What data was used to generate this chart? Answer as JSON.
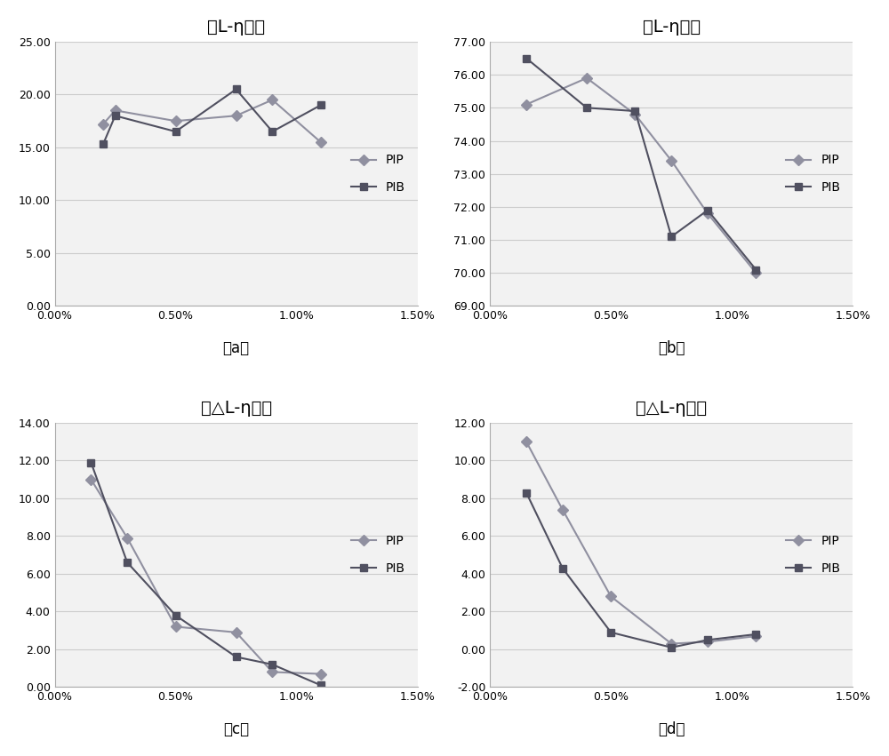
{
  "subplots": [
    {
      "title": "黑L-η曲线",
      "label": "（a）",
      "pip_x": [
        0.002,
        0.0025,
        0.005,
        0.0075,
        0.009,
        0.011
      ],
      "pip_y": [
        17.2,
        18.5,
        17.5,
        18.0,
        19.5,
        15.5
      ],
      "pib_x": [
        0.002,
        0.0025,
        0.005,
        0.0075,
        0.009,
        0.011
      ],
      "pib_y": [
        15.3,
        18.0,
        16.5,
        20.5,
        16.5,
        19.0
      ],
      "ylim": [
        0,
        25
      ],
      "yticks": [
        0.0,
        5.0,
        10.0,
        15.0,
        20.0,
        25.0
      ],
      "xlim": [
        0,
        0.015
      ],
      "xticks": [
        0.0,
        0.005,
        0.01,
        0.015
      ],
      "xticklabels": [
        "0.00%",
        "0.50%",
        "1.00%",
        "1.50%"
      ]
    },
    {
      "title": "白L-η曲线",
      "label": "（b）",
      "pip_x": [
        0.0015,
        0.004,
        0.006,
        0.0075,
        0.009,
        0.011
      ],
      "pip_y": [
        75.1,
        75.9,
        74.8,
        73.4,
        71.8,
        70.0
      ],
      "pib_x": [
        0.0015,
        0.004,
        0.006,
        0.0075,
        0.009,
        0.011
      ],
      "pib_y": [
        76.5,
        75.0,
        74.9,
        71.1,
        71.9,
        70.1
      ],
      "ylim": [
        69,
        77
      ],
      "yticks": [
        69.0,
        70.0,
        71.0,
        72.0,
        73.0,
        74.0,
        75.0,
        76.0,
        77.0
      ],
      "xlim": [
        0,
        0.015
      ],
      "xticks": [
        0.0,
        0.005,
        0.01,
        0.015
      ],
      "xticklabels": [
        "0.00%",
        "0.50%",
        "1.00%",
        "1.50%"
      ]
    },
    {
      "title": "黑△L-η曲线",
      "label": "（c）",
      "pip_x": [
        0.0015,
        0.003,
        0.005,
        0.0075,
        0.009,
        0.011
      ],
      "pip_y": [
        11.0,
        7.9,
        3.2,
        2.9,
        0.8,
        0.7
      ],
      "pib_x": [
        0.0015,
        0.003,
        0.005,
        0.0075,
        0.009,
        0.011
      ],
      "pib_y": [
        11.9,
        6.6,
        3.8,
        1.6,
        1.2,
        0.1
      ],
      "ylim": [
        0,
        14
      ],
      "yticks": [
        0.0,
        2.0,
        4.0,
        6.0,
        8.0,
        10.0,
        12.0,
        14.0
      ],
      "xlim": [
        0,
        0.015
      ],
      "xticks": [
        0.0,
        0.005,
        0.01,
        0.015
      ],
      "xticklabels": [
        "0.00%",
        "0.50%",
        "1.00%",
        "1.50%"
      ]
    },
    {
      "title": "白△L-η曲线",
      "label": "（d）",
      "pip_x": [
        0.0015,
        0.003,
        0.005,
        0.0075,
        0.009,
        0.011
      ],
      "pip_y": [
        11.0,
        7.4,
        2.8,
        0.3,
        0.4,
        0.7
      ],
      "pib_x": [
        0.0015,
        0.003,
        0.005,
        0.0075,
        0.009,
        0.011
      ],
      "pib_y": [
        8.3,
        4.3,
        0.9,
        0.1,
        0.5,
        0.8
      ],
      "ylim": [
        -2,
        12
      ],
      "yticks": [
        -2.0,
        0.0,
        2.0,
        4.0,
        6.0,
        8.0,
        10.0,
        12.0
      ],
      "xlim": [
        0,
        0.015
      ],
      "xticks": [
        0.0,
        0.005,
        0.01,
        0.015
      ],
      "xticklabels": [
        "0.00%",
        "0.50%",
        "1.00%",
        "1.50%"
      ]
    }
  ],
  "pip_color": "#9090a0",
  "pib_color": "#505060",
  "pip_marker": "D",
  "pib_marker": "s",
  "linewidth": 1.5,
  "markersize": 6,
  "title_fontsize": 14,
  "tick_fontsize": 9,
  "legend_fontsize": 10,
  "label_fontsize": 12,
  "bg_color": "#f2f2f2",
  "grid_color": "#cccccc",
  "border_color": "#aaaaaa"
}
